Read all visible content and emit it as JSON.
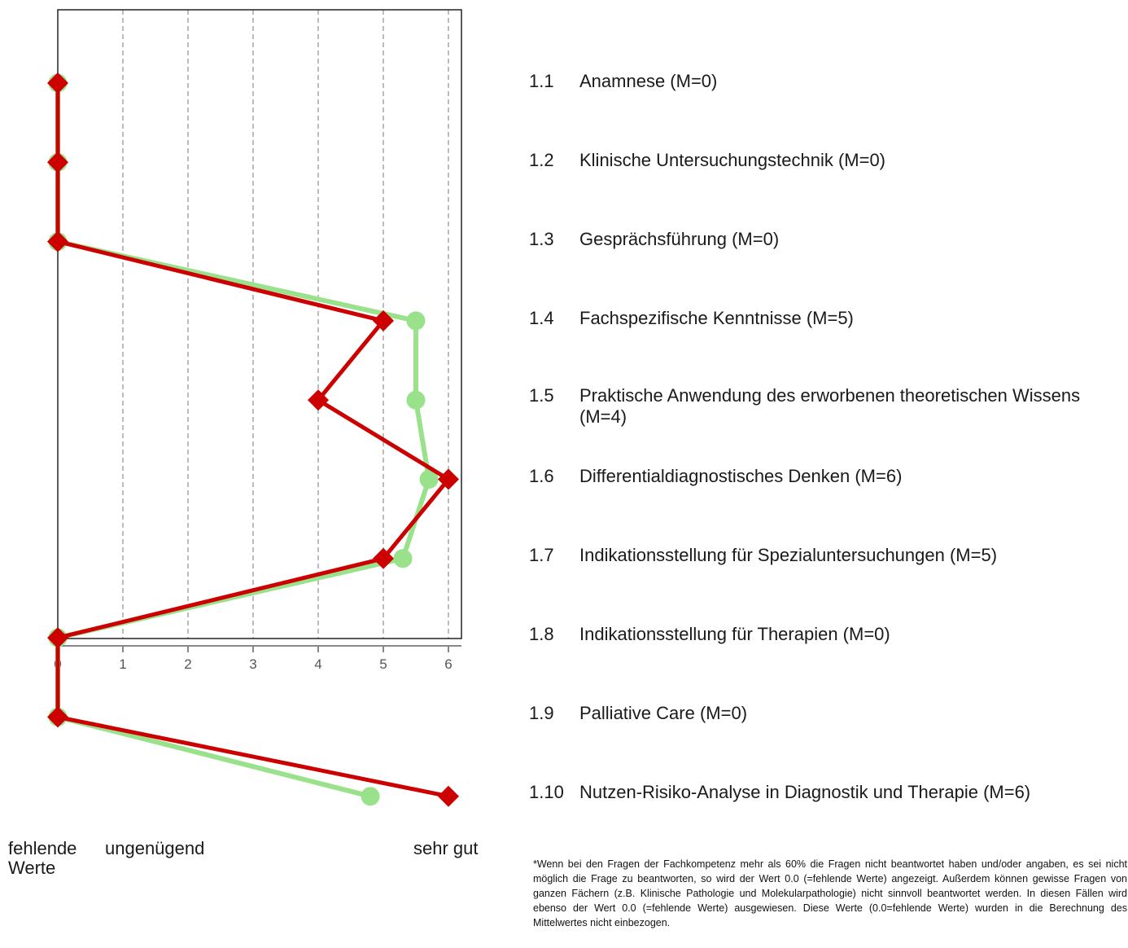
{
  "chart_data": {
    "type": "line",
    "orientation": "horizontal",
    "xlim": [
      0,
      6.2
    ],
    "x_ticks": [
      "0",
      "1",
      "2",
      "3",
      "4",
      "5",
      "6"
    ],
    "grid": "vertical dashed",
    "categories": [
      "1.1",
      "1.2",
      "1.3",
      "1.4",
      "1.5",
      "1.6",
      "1.7",
      "1.8",
      "1.9",
      "1.10"
    ],
    "series": [
      {
        "color": "#99e18a",
        "marker": "circle",
        "values": [
          0,
          0,
          0,
          5.5,
          5.5,
          5.7,
          5.3,
          0,
          0,
          4.8
        ]
      },
      {
        "color": "#cc0000",
        "marker": "diamond",
        "values": [
          0,
          0,
          0,
          5,
          4,
          6,
          5,
          0,
          0,
          6
        ]
      }
    ]
  },
  "scale_labels": {
    "missing": "fehlende\nWerte",
    "insufficient": "ungenügend",
    "very_good": "sehr gut"
  },
  "items": [
    {
      "num": "1.1",
      "text": "Anamnese (M=0)"
    },
    {
      "num": "1.2",
      "text": "Klinische Untersuchungstechnik (M=0)"
    },
    {
      "num": "1.3",
      "text": "Gesprächsführung (M=0)"
    },
    {
      "num": "1.4",
      "text": "Fachspezifische Kenntnisse (M=5)"
    },
    {
      "num": "1.5",
      "text": "Praktische Anwendung des erworbenen theoretischen Wissens (M=4)"
    },
    {
      "num": "1.6",
      "text": "Differentialdiagnostisches Denken (M=6)"
    },
    {
      "num": "1.7",
      "text": "Indikationsstellung für Spezialuntersuchungen (M=5)"
    },
    {
      "num": "1.8",
      "text": "Indikationsstellung für Therapien (M=0)"
    },
    {
      "num": "1.9",
      "text": "Palliative Care (M=0)"
    },
    {
      "num": "1.10",
      "text": "Nutzen-Risiko-Analyse in Diagnostik und Therapie (M=6)"
    }
  ],
  "footnote": "*Wenn bei den Fragen der Fachkompetenz mehr als 60% die Fragen nicht beantwortet haben und/oder angaben, es sei nicht möglich die Frage zu beantworten, so wird der Wert 0.0 (=fehlende Werte) angezeigt. Außerdem können gewisse Fragen von ganzen Fächern (z.B. Klinische Pathologie und Molekularpathologie) nicht sinnvoll beantwortet werden. In diesen Fällen wird ebenso der Wert 0.0 (=fehlende Werte) ausgewiesen. Diese Werte (0.0=fehlende Werte) wurden in die Berechnung des Mittelwertes nicht einbezogen."
}
